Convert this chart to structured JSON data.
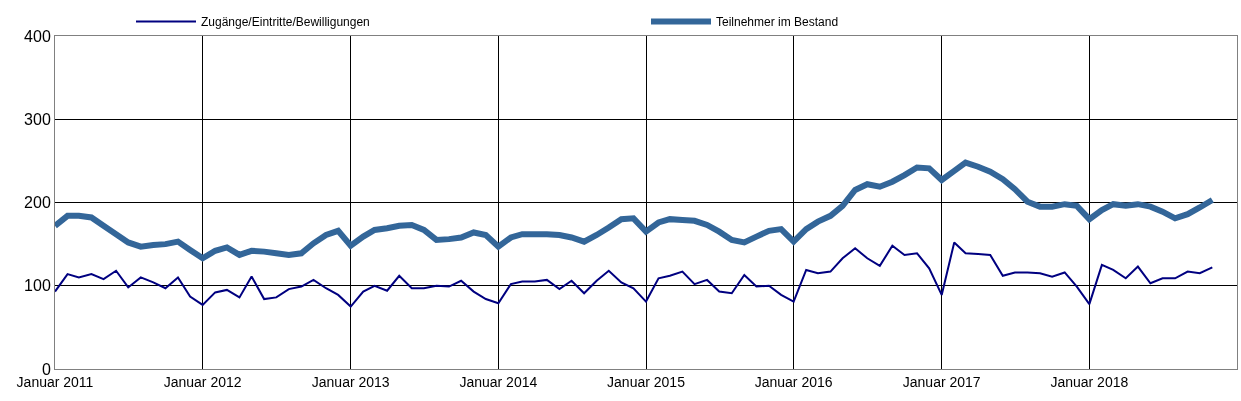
{
  "chart_data": {
    "type": "line",
    "x": [
      "2011-01",
      "2011-02",
      "2011-03",
      "2011-04",
      "2011-05",
      "2011-06",
      "2011-07",
      "2011-08",
      "2011-09",
      "2011-10",
      "2011-11",
      "2011-12",
      "2012-01",
      "2012-02",
      "2012-03",
      "2012-04",
      "2012-05",
      "2012-06",
      "2012-07",
      "2012-08",
      "2012-09",
      "2012-10",
      "2012-11",
      "2012-12",
      "2013-01",
      "2013-02",
      "2013-03",
      "2013-04",
      "2013-05",
      "2013-06",
      "2013-07",
      "2013-08",
      "2013-09",
      "2013-10",
      "2013-11",
      "2013-12",
      "2014-01",
      "2014-02",
      "2014-03",
      "2014-04",
      "2014-05",
      "2014-06",
      "2014-07",
      "2014-08",
      "2014-09",
      "2014-10",
      "2014-11",
      "2014-12",
      "2015-01",
      "2015-02",
      "2015-03",
      "2015-04",
      "2015-05",
      "2015-06",
      "2015-07",
      "2015-08",
      "2015-09",
      "2015-10",
      "2015-11",
      "2015-12",
      "2016-01",
      "2016-02",
      "2016-03",
      "2016-04",
      "2016-05",
      "2016-06",
      "2016-07",
      "2016-08",
      "2016-09",
      "2016-10",
      "2016-11",
      "2016-12",
      "2017-01",
      "2017-02",
      "2017-03",
      "2017-04",
      "2017-05",
      "2017-06",
      "2017-07",
      "2017-08",
      "2017-09",
      "2017-10",
      "2017-11",
      "2017-12",
      "2018-01",
      "2018-02",
      "2018-03",
      "2018-04",
      "2018-05",
      "2018-06",
      "2018-07",
      "2018-08",
      "2018-09",
      "2018-10",
      "2018-11"
    ],
    "series": [
      {
        "name": "Zugänge/Eintritte/Bewilligungen",
        "color": "#000080",
        "values": [
          93,
          114,
          110,
          114,
          108,
          118,
          98,
          110,
          104,
          97,
          110,
          87,
          77,
          92,
          95,
          86,
          111,
          84,
          86,
          96,
          99,
          107,
          97,
          89,
          75,
          93,
          100,
          94,
          112,
          97,
          97,
          100,
          99,
          106,
          93,
          84,
          79,
          102,
          105,
          105,
          107,
          96,
          106,
          91,
          106,
          118,
          104,
          97,
          81,
          109,
          112,
          117,
          102,
          107,
          93,
          91,
          113,
          99,
          100,
          89,
          81,
          119,
          115,
          117,
          133,
          145,
          133,
          124,
          148,
          137,
          139,
          121,
          89,
          152,
          139,
          138,
          137,
          112,
          116,
          116,
          115,
          111,
          116,
          99,
          78,
          125,
          119,
          109,
          123,
          103,
          109,
          109,
          117,
          115,
          122
        ]
      },
      {
        "name": "Teilnehmer im Bestand",
        "color": "#336699",
        "values": [
          172,
          184,
          184,
          182,
          172,
          162,
          152,
          147,
          149,
          150,
          153,
          143,
          133,
          142,
          146,
          137,
          142,
          141,
          139,
          137,
          139,
          151,
          161,
          166,
          148,
          159,
          167,
          169,
          172,
          173,
          167,
          155,
          156,
          158,
          164,
          161,
          147,
          158,
          162,
          162,
          162,
          161,
          158,
          153,
          161,
          170,
          180,
          181,
          165,
          176,
          180,
          179,
          178,
          173,
          165,
          155,
          152,
          159,
          166,
          168,
          153,
          168,
          177,
          184,
          196,
          215,
          222,
          219,
          225,
          233,
          242,
          241,
          227,
          238,
          248,
          243,
          237,
          228,
          216,
          201,
          195,
          195,
          198,
          196,
          180,
          191,
          198,
          196,
          198,
          195,
          189,
          181,
          186,
          194,
          203
        ]
      }
    ],
    "xlim": [
      "2011-01",
      "2019-01"
    ],
    "xticks": [
      {
        "value": "2011-01",
        "label": "Januar 2011"
      },
      {
        "value": "2012-01",
        "label": "Januar 2012"
      },
      {
        "value": "2013-01",
        "label": "Januar 2013"
      },
      {
        "value": "2014-01",
        "label": "Januar 2014"
      },
      {
        "value": "2015-01",
        "label": "Januar 2015"
      },
      {
        "value": "2016-01",
        "label": "Januar 2016"
      },
      {
        "value": "2017-01",
        "label": "Januar 2017"
      },
      {
        "value": "2018-01",
        "label": "Januar 2018"
      }
    ],
    "ylim": [
      0,
      400
    ],
    "yticks": [
      0,
      100,
      200,
      300,
      400
    ],
    "grid": true,
    "legend": "top",
    "marker": "none",
    "line_style": "solid"
  }
}
